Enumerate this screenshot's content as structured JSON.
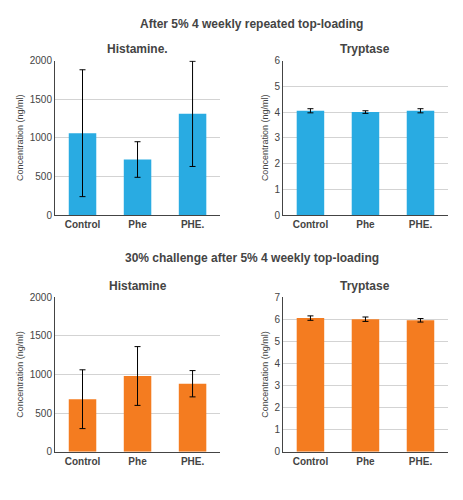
{
  "chart_data": [
    {
      "type": "bar",
      "title": "Histamine.",
      "annotations": [
        {
          "text": "After 5% 4 weekly repeated top-loading"
        }
      ],
      "categories": [
        "Control",
        "Phe",
        "PHE."
      ],
      "values": [
        1060,
        720,
        1310
      ],
      "errors": [
        820,
        230,
        680
      ],
      "color": "#29ABE2",
      "ylabel": "Concentration (ng/ml)",
      "ylim": [
        0,
        2000
      ],
      "yticks": [
        0,
        500,
        1000,
        1500,
        2000
      ],
      "grid": true
    },
    {
      "type": "bar",
      "title": "Tryptase",
      "categories": [
        "Control",
        "Phe",
        "PHE."
      ],
      "values": [
        4.05,
        4.0,
        4.05
      ],
      "errors": [
        0.08,
        0.05,
        0.08
      ],
      "color": "#29ABE2",
      "ylabel": "Concentration (ng/ml)",
      "ylim": [
        0,
        6
      ],
      "yticks": [
        0,
        1,
        2,
        3,
        4,
        5,
        6
      ],
      "grid": true
    },
    {
      "type": "bar",
      "title": "Histamine",
      "annotations": [
        {
          "text": "30% challenge after 5% 4 weekly top-loading"
        }
      ],
      "categories": [
        "Control",
        "Phe",
        "PHE."
      ],
      "values": [
        680,
        980,
        880
      ],
      "errors": [
        380,
        380,
        170
      ],
      "color": "#F47C20",
      "ylabel": "Concentration (ng/ml)",
      "ylim": [
        0,
        2000
      ],
      "yticks": [
        0,
        500,
        1000,
        1500,
        2000
      ],
      "grid": true
    },
    {
      "type": "bar",
      "title": "Tryptase",
      "categories": [
        "Control",
        "Phe",
        "PHE."
      ],
      "values": [
        6.05,
        6.0,
        5.95
      ],
      "errors": [
        0.1,
        0.1,
        0.08
      ],
      "color": "#F47C20",
      "ylabel": "Concentration (ng/ml)",
      "ylim": [
        0,
        7
      ],
      "yticks": [
        0,
        1,
        2,
        3,
        4,
        5,
        6,
        7
      ],
      "grid": true
    }
  ]
}
